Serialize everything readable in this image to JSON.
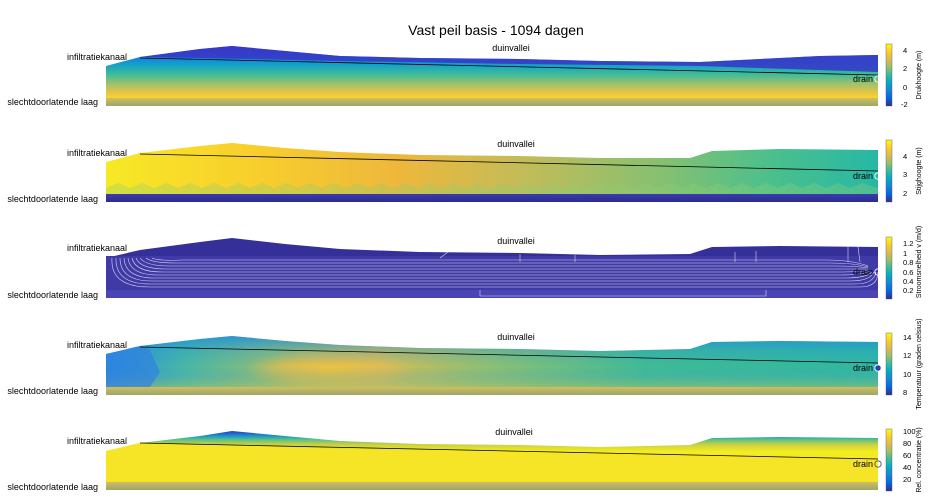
{
  "title": "Vast peil basis - 1094 dagen",
  "colors": {
    "parula": [
      "#352a87",
      "#0363e1",
      "#1485d4",
      "#06a7c6",
      "#38b99e",
      "#92bf73",
      "#d9ba56",
      "#fcce2e",
      "#f9fb0e"
    ],
    "streamline": "#ffffff",
    "waterline": "#000000",
    "low_layer": [
      "#c9b866",
      "#9aa36a"
    ]
  },
  "panels": [
    {
      "id": "drukhoogte",
      "left_label": "infiltratiekanaal",
      "bottom_label": "slechtdoorlatende laag",
      "top_label": "duinvallei",
      "drain_label": "drain",
      "colorbar": {
        "label": "Drukhoogte (m)",
        "ticks": [
          "4",
          "2",
          "0",
          "-2"
        ]
      }
    },
    {
      "id": "stijghoogte",
      "left_label": "infiltratiekanaal",
      "bottom_label": "slechtdoorlatende laag",
      "top_label": "duinvallei",
      "drain_label": "drain",
      "colorbar": {
        "label": "Stijghoogte (m)",
        "ticks": [
          "4",
          "3",
          "2"
        ]
      }
    },
    {
      "id": "stroomsnelheid",
      "left_label": "infiltratiekanaal",
      "bottom_label": "slechtdoorlatende laag",
      "top_label": "duinvallei",
      "drain_label": "drain",
      "colorbar": {
        "label": "Stroomsnelheid v (m/d)",
        "ticks": [
          "1.2",
          "1",
          "0.8",
          "0.6",
          "0.4",
          "0.2"
        ]
      }
    },
    {
      "id": "temperatuur",
      "left_label": "infiltratiekanaal",
      "bottom_label": "slechtdoorlatende laag",
      "top_label": "duinvallei",
      "drain_label": "drain",
      "colorbar": {
        "label": "Temperatuur (graden celsius)",
        "ticks": [
          "14",
          "12",
          "10",
          "8"
        ]
      }
    },
    {
      "id": "concentratie",
      "left_label": "infiltratiekanaal",
      "bottom_label": "slechtdoorlatende laag",
      "top_label": "duinvallei",
      "drain_label": "drain",
      "colorbar": {
        "label": "Rel. concentratie (%)",
        "ticks": [
          "100",
          "80",
          "60",
          "40",
          "20"
        ]
      }
    }
  ]
}
